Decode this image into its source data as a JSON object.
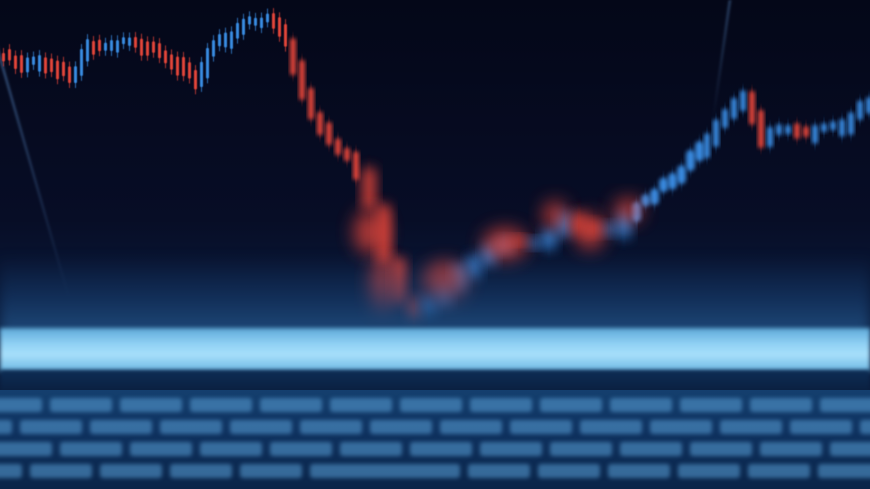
{
  "image": {
    "subject": "candlestick-trading-chart-on-laptop-screen",
    "colors": {
      "background": "#050a1c",
      "bullish_candle": "#3b8fe6",
      "bearish_candle": "#e8463a",
      "screen_edge": "#a8e0fb",
      "keyboard": "#0f3260"
    }
  }
}
